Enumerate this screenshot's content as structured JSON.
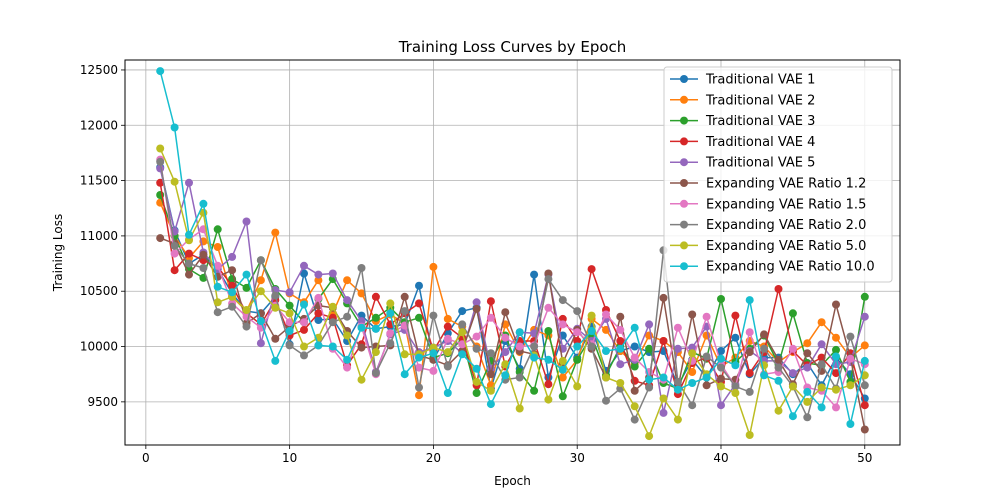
{
  "chart_data": {
    "type": "line",
    "title": "Training Loss Curves by Epoch",
    "xlabel": "Epoch",
    "ylabel": "Training Loss",
    "xlim": [
      -1.45,
      52.45
    ],
    "ylim": [
      9110,
      12590
    ],
    "xticks": [
      0,
      10,
      20,
      30,
      40,
      50
    ],
    "yticks": [
      9500,
      10000,
      10500,
      11000,
      11500,
      12000,
      12500
    ],
    "grid": true,
    "legend_position": "top-right",
    "x": [
      1,
      2,
      3,
      4,
      5,
      6,
      7,
      8,
      9,
      10,
      11,
      12,
      13,
      14,
      15,
      16,
      17,
      18,
      19,
      20,
      21,
      22,
      23,
      24,
      25,
      26,
      27,
      28,
      29,
      30,
      31,
      32,
      33,
      34,
      35,
      36,
      37,
      38,
      39,
      40,
      41,
      42,
      43,
      44,
      45,
      46,
      47,
      48,
      49,
      50
    ],
    "series": [
      {
        "name": "Traditional VAE 1",
        "color": "#1f77b4",
        "values": [
          11620,
          11050,
          10750,
          10830,
          10700,
          10480,
          10320,
          10300,
          10450,
          10020,
          10660,
          10240,
          10250,
          10050,
          10280,
          10160,
          10180,
          10200,
          10550,
          9880,
          10120,
          10320,
          10350,
          9620,
          10050,
          9800,
          10650,
          9720,
          10100,
          9900,
          10180,
          9780,
          9960,
          10000,
          9950,
          9960,
          9650,
          9880,
          9720,
          9960,
          10080,
          9750,
          9900,
          9900,
          9750,
          9850,
          9650,
          9900,
          9750,
          9530
        ]
      },
      {
        "name": "Traditional VAE 2",
        "color": "#ff7f0e",
        "values": [
          11300,
          11000,
          10800,
          10950,
          10900,
          10450,
          10320,
          10600,
          11030,
          10480,
          10400,
          10600,
          10300,
          10600,
          10480,
          10230,
          10290,
          10210,
          9560,
          10720,
          10250,
          10180,
          10000,
          9650,
          10200,
          9950,
          10150,
          10100,
          9720,
          9880,
          10250,
          10150,
          9960,
          9840,
          10100,
          10050,
          9950,
          9770,
          10100,
          9820,
          9900,
          10050,
          10000,
          9860,
          9950,
          10030,
          10220,
          10080,
          9900,
          10010
        ]
      },
      {
        "name": "Traditional VAE 3",
        "color": "#2ca02c",
        "values": [
          11370,
          11000,
          10700,
          10620,
          11060,
          10610,
          10530,
          10780,
          10520,
          10370,
          10220,
          10430,
          10610,
          10390,
          10180,
          10260,
          10350,
          10220,
          10260,
          9900,
          9940,
          10070,
          9580,
          9870,
          10100,
          9770,
          9600,
          10140,
          9550,
          9880,
          10100,
          9740,
          10000,
          9820,
          9980,
          9670,
          9620,
          9950,
          9890,
          10430,
          9860,
          9980,
          10100,
          9840,
          10300,
          9850,
          9830,
          9970,
          9680,
          10450
        ]
      },
      {
        "name": "Traditional VAE 4",
        "color": "#d62728",
        "values": [
          11480,
          10690,
          10840,
          10780,
          10720,
          10550,
          10300,
          10200,
          10420,
          10100,
          10150,
          10300,
          10260,
          9830,
          10020,
          10450,
          10200,
          10300,
          10390,
          9960,
          10180,
          10080,
          9650,
          10410,
          9820,
          10050,
          10050,
          9660,
          10250,
          10050,
          10700,
          10330,
          10050,
          9690,
          9650,
          10050,
          9570,
          9850,
          9900,
          9680,
          10280,
          9760,
          9950,
          10520,
          9960,
          9830,
          9900,
          9760,
          9940,
          9470
        ]
      },
      {
        "name": "Traditional VAE 5",
        "color": "#9467bd",
        "values": [
          11610,
          11040,
          11480,
          10850,
          10700,
          10810,
          11130,
          10030,
          10510,
          10490,
          10730,
          10650,
          10660,
          10420,
          10230,
          9770,
          10110,
          10150,
          9950,
          9990,
          10050,
          9940,
          10400,
          9800,
          9950,
          10130,
          10120,
          10650,
          9980,
          10160,
          10050,
          10250,
          9840,
          9880,
          10200,
          9400,
          9980,
          9990,
          10180,
          9470,
          9660,
          9960,
          9870,
          9870,
          9760,
          9810,
          10020,
          9840,
          9860,
          10270
        ]
      },
      {
        "name": "Expanding VAE Ratio 1.2",
        "color": "#8c564b",
        "values": [
          10980,
          10930,
          10650,
          10830,
          10630,
          10690,
          10210,
          10300,
          10070,
          10180,
          10250,
          10370,
          10350,
          10140,
          9990,
          10000,
          10010,
          10450,
          9920,
          9880,
          9830,
          9960,
          10340,
          9750,
          10310,
          9960,
          9930,
          10660,
          9850,
          10150,
          9980,
          9720,
          10270,
          9600,
          9720,
          10440,
          9620,
          10290,
          9650,
          9710,
          9700,
          9950,
          10110,
          9880,
          9660,
          9940,
          9780,
          10380,
          9900,
          9250
        ]
      },
      {
        "name": "Expanding VAE Ratio 1.5",
        "color": "#e377c2",
        "values": [
          11690,
          10840,
          10970,
          11060,
          10730,
          10390,
          10270,
          10170,
          10370,
          10220,
          10220,
          10440,
          9980,
          9810,
          10180,
          9750,
          10120,
          10190,
          9810,
          9780,
          10070,
          10020,
          10090,
          10260,
          10080,
          10000,
          10010,
          10350,
          10200,
          10130,
          10020,
          10290,
          10150,
          9900,
          9770,
          9700,
          10170,
          9870,
          10270,
          9840,
          9640,
          10130,
          9750,
          9770,
          9980,
          9630,
          9600,
          9450,
          9890,
          9840
        ]
      },
      {
        "name": "Expanding VAE Ratio 2.0",
        "color": "#7f7f7f",
        "values": [
          11670,
          10910,
          10750,
          10710,
          10310,
          10360,
          10180,
          10780,
          10460,
          10010,
          9920,
          10010,
          10220,
          10270,
          10710,
          9760,
          10030,
          10320,
          9630,
          10280,
          9820,
          10200,
          9980,
          9940,
          9700,
          9720,
          10000,
          10610,
          10420,
          10320,
          10000,
          9510,
          9620,
          9340,
          9630,
          10870,
          9680,
          9470,
          9910,
          9810,
          9640,
          9590,
          9980,
          9810,
          9640,
          9360,
          9840,
          9620,
          10090,
          9650
        ]
      },
      {
        "name": "Expanding VAE Ratio 5.0",
        "color": "#bcbd22",
        "values": [
          11790,
          11490,
          10960,
          11210,
          10400,
          10450,
          10330,
          10500,
          10350,
          10300,
          10000,
          10080,
          10360,
          10100,
          9700,
          9950,
          10390,
          9930,
          9930,
          9990,
          9950,
          10130,
          9680,
          9600,
          9840,
          9440,
          9920,
          9520,
          9870,
          9640,
          10280,
          9720,
          9670,
          9460,
          9190,
          9530,
          9340,
          9940,
          9750,
          9640,
          9580,
          9200,
          9830,
          9420,
          9640,
          9500,
          9630,
          9610,
          9650,
          9740
        ]
      },
      {
        "name": "Expanding VAE Ratio 10.0",
        "color": "#17becf",
        "values": [
          12490,
          11980,
          11010,
          11290,
          10540,
          10490,
          10650,
          10230,
          9870,
          10140,
          10380,
          10010,
          10000,
          9880,
          10170,
          10160,
          10300,
          9750,
          9900,
          9940,
          9580,
          9930,
          9800,
          9480,
          9740,
          10130,
          9900,
          9880,
          9790,
          10000,
          10140,
          9960,
          9980,
          10170,
          9700,
          9720,
          9610,
          9670,
          9720,
          9890,
          9830,
          10420,
          9740,
          9690,
          9370,
          9590,
          9450,
          9910,
          9300,
          9870
        ]
      }
    ]
  }
}
